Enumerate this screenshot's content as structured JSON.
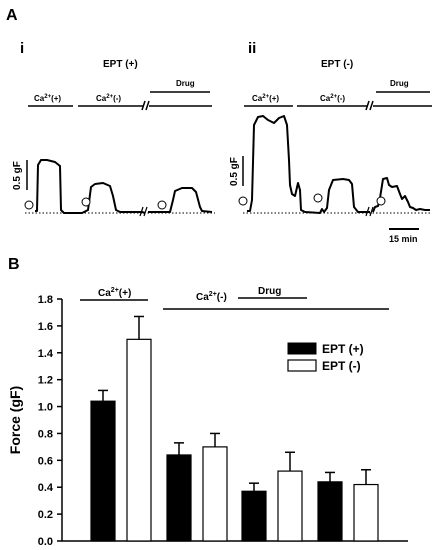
{
  "panel_a": {
    "label": "A",
    "sub_i": {
      "label": "i",
      "title": "EPT (+)",
      "ca_plus": "Ca2+(+)",
      "ca_minus": "Ca2+(-)",
      "drug": "Drug",
      "scale": "0.5 gF"
    },
    "sub_ii": {
      "label": "ii",
      "title": "EPT (-)",
      "ca_plus": "Ca2+(+)",
      "ca_minus": "Ca2+(-)",
      "drug": "Drug",
      "scale": "0.5 gF",
      "time_scale": "15 min"
    }
  },
  "panel_b": {
    "label": "B",
    "ca_plus_label": "Ca2+(+)",
    "ca_minus_label": "Ca2+(-)",
    "drug_label": "Drug"
  },
  "chart_data": {
    "type": "bar",
    "ylabel": "Force (gF)",
    "ylim": [
      0,
      1.8
    ],
    "yticks": [
      "0.0",
      "0.2",
      "0.4",
      "0.6",
      "0.8",
      "1.0",
      "1.2",
      "1.4",
      "1.6",
      "1.8"
    ],
    "legend_position": "upper-right",
    "series": [
      {
        "name": "EPT (+)",
        "color": "#000000",
        "values": [
          1.04,
          0.64,
          0.37,
          0.44
        ],
        "errors": [
          0.08,
          0.09,
          0.06,
          0.07
        ]
      },
      {
        "name": "EPT (-)",
        "color": "#ffffff",
        "values": [
          1.5,
          0.7,
          0.52,
          0.42
        ],
        "errors": [
          0.17,
          0.1,
          0.14,
          0.11
        ]
      }
    ]
  }
}
